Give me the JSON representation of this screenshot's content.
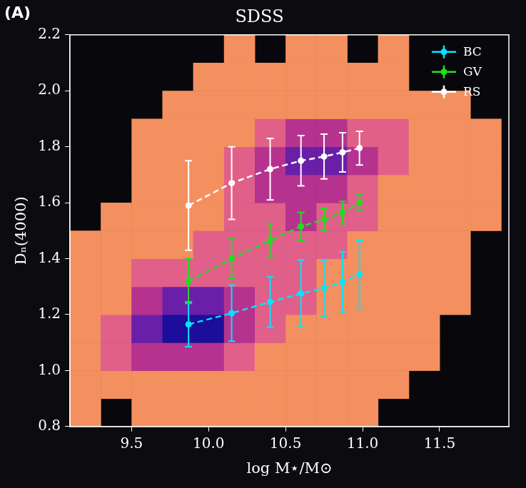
{
  "chart_data": {
    "type": "scatter",
    "title": "SDSS",
    "panel_label": "(A)",
    "x_label": "log M⋆/M⊙",
    "y_label": "Dₙ(4000)",
    "xlim": [
      9.1,
      11.95
    ],
    "xticks": [
      9.5,
      {
        "value": 10,
        "label": "10.0"
      },
      10.5,
      {
        "value": 11,
        "label": "11.0"
      },
      11.5
    ],
    "ylim": [
      0.8,
      2.2
    ],
    "yticks": [
      0.8,
      {
        "value": 1,
        "label": "1.0"
      },
      1.2,
      1.4,
      1.6,
      1.8,
      {
        "value": 2,
        "label": "2.0"
      },
      2.2
    ],
    "grid": false,
    "legend": "upper right",
    "series": [
      {
        "name": "BC",
        "color": "#00e5ff",
        "marker": "o",
        "line_style": "dashed",
        "x": [
          9.87,
          10.15,
          10.4,
          10.6,
          10.75,
          10.87,
          10.98
        ],
        "values": [
          1.165,
          1.205,
          1.245,
          1.275,
          1.295,
          1.315,
          1.345
        ],
        "errors": [
          0.08,
          0.1,
          0.09,
          0.12,
          0.1,
          0.11,
          0.12
        ]
      },
      {
        "name": "GV",
        "color": "#22dd22",
        "marker": "o",
        "line_style": "dashed",
        "x": [
          9.87,
          10.15,
          10.4,
          10.6,
          10.75,
          10.87,
          10.98
        ],
        "values": [
          1.32,
          1.4,
          1.465,
          1.515,
          1.54,
          1.565,
          1.6
        ],
        "errors": [
          0.08,
          0.07,
          0.06,
          0.05,
          0.04,
          0.04,
          0.03
        ]
      },
      {
        "name": "RS",
        "color": "#ffffff",
        "marker": "o",
        "line_style": "dashed",
        "x": [
          9.87,
          10.15,
          10.4,
          10.6,
          10.75,
          10.87,
          10.98
        ],
        "values": [
          1.59,
          1.67,
          1.72,
          1.75,
          1.765,
          1.78,
          1.795
        ],
        "errors": [
          0.16,
          0.13,
          0.11,
          0.09,
          0.08,
          0.07,
          0.06
        ]
      }
    ],
    "density": {
      "x_edges": [
        9.1,
        9.3,
        9.5,
        9.7,
        9.9,
        10.1,
        10.3,
        10.5,
        10.7,
        10.9,
        11.1,
        11.3,
        11.5,
        11.7,
        11.9
      ],
      "y_edges": [
        0.8,
        0.9,
        1.0,
        1.1,
        1.2,
        1.3,
        1.4,
        1.5,
        1.6,
        1.7,
        1.8,
        1.9,
        2.0,
        2.1,
        2.2
      ],
      "values": [
        [
          1,
          0,
          1,
          1,
          1,
          1,
          1,
          1,
          1,
          1,
          0,
          0,
          0,
          0
        ],
        [
          1,
          1,
          1,
          1,
          1,
          1,
          1,
          1,
          1,
          1,
          1,
          0,
          0,
          0
        ],
        [
          1,
          2,
          3,
          3,
          3,
          2,
          1,
          1,
          1,
          1,
          1,
          1,
          0,
          0
        ],
        [
          1,
          2,
          4,
          5,
          5,
          3,
          2,
          1,
          1,
          1,
          1,
          1,
          0,
          0
        ],
        [
          1,
          1,
          3,
          4,
          4,
          3,
          2,
          2,
          1,
          1,
          1,
          1,
          1,
          0
        ],
        [
          1,
          1,
          2,
          2,
          2,
          2,
          2,
          2,
          1,
          1,
          1,
          1,
          1,
          0
        ],
        [
          1,
          1,
          1,
          1,
          2,
          2,
          2,
          2,
          2,
          1,
          1,
          1,
          1,
          0
        ],
        [
          0,
          1,
          1,
          1,
          1,
          2,
          2,
          3,
          2,
          2,
          1,
          1,
          1,
          1
        ],
        [
          0,
          0,
          1,
          1,
          1,
          2,
          3,
          3,
          3,
          2,
          1,
          1,
          1,
          1
        ],
        [
          0,
          0,
          1,
          1,
          1,
          2,
          3,
          4,
          4,
          3,
          2,
          1,
          1,
          1
        ],
        [
          0,
          0,
          1,
          1,
          1,
          1,
          2,
          3,
          3,
          2,
          2,
          1,
          1,
          1
        ],
        [
          0,
          0,
          0,
          1,
          1,
          1,
          1,
          1,
          1,
          1,
          1,
          1,
          1,
          0
        ],
        [
          0,
          0,
          0,
          0,
          1,
          1,
          1,
          1,
          1,
          1,
          1,
          0,
          0,
          0
        ],
        [
          0,
          0,
          0,
          0,
          0,
          1,
          0,
          1,
          1,
          0,
          1,
          0,
          0,
          0
        ]
      ]
    }
  }
}
